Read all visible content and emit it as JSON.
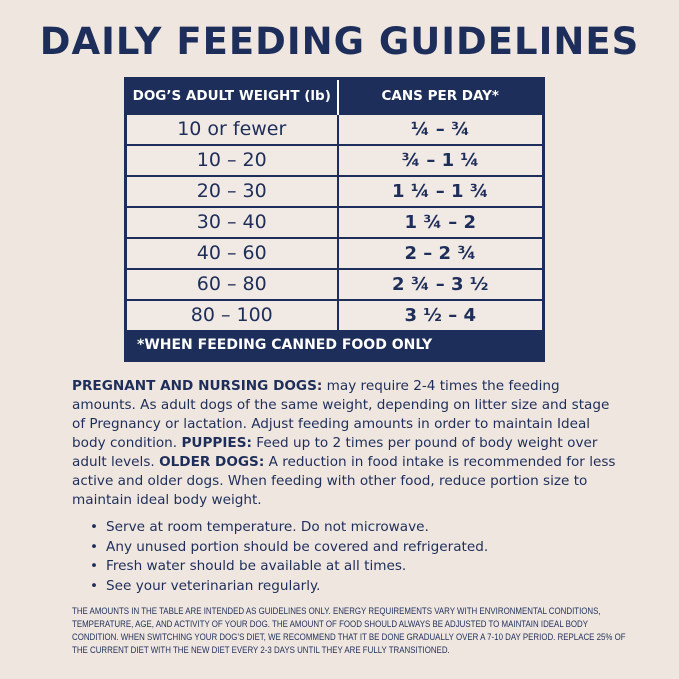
{
  "title": "DAILY FEEDING GUIDELINES",
  "table": {
    "headers": [
      "DOG’S ADULT WEIGHT (lb)",
      "CANS PER DAY*"
    ],
    "rows": [
      [
        "10 or fewer",
        "¼ – ¾"
      ],
      [
        "10 – 20",
        "¾ – 1 ¼"
      ],
      [
        "20 – 30",
        "1 ¼ – 1 ¾"
      ],
      [
        "30 – 40",
        "1 ¾ – 2"
      ],
      [
        "40 – 60",
        "2 – 2 ¾"
      ],
      [
        "60 – 80",
        "2 ¾ – 3 ½"
      ],
      [
        "80 – 100",
        "3 ½ – 4"
      ]
    ],
    "footnote": "*WHEN FEEDING CANNED FOOD ONLY"
  },
  "paragraph": {
    "pregnant_label": "PREGNANT AND NURSING DOGS:",
    "pregnant_text": " may require 2-4 times the feeding amounts. As adult dogs of the same weight, depending on litter size and stage of Pregnancy or lactation. Adjust feeding amounts in order to maintain Ideal body condition. ",
    "puppies_label": "PUPPIES:",
    "puppies_text": " Feed up to 2 times per pound of body weight over adult levels. ",
    "older_label": "OLDER DOGS:",
    "older_text": " A reduction in food intake is recommended for less active and older dogs. When feeding with other food, reduce portion size to maintain ideal body weight."
  },
  "bullets": [
    "Serve at room temperature. Do not microwave.",
    "Any unused portion should be covered and refrigerated.",
    "Fresh water should be available at all times.",
    "See your veterinarian regularly."
  ],
  "fine_print": "THE AMOUNTS IN THE TABLE ARE INTENDED AS GUIDELINES ONLY. ENERGY REQUIREMENTS VARY WITH ENVIRONMENTAL CONDITIONS, TEMPERATURE, AGE, AND ACTIVITY OF YOUR DOG. THE AMOUNT OF FOOD SHOULD ALWAYS BE ADJUSTED TO MAINTAIN IDEAL BODY CONDITION. WHEN SWITCHING YOUR DOG’S DIET, WE RECOMMEND THAT IT BE DONE GRADUALLY OVER A 7-10 DAY PERIOD. REPLACE 25% OF THE CURRENT DIET WITH THE NEW DIET EVERY 2-3 DAYS UNTIL THEY ARE FULLY TRANSITIONED.",
  "colors": {
    "navy": "#1e2e5a",
    "background": "#efe6e0"
  }
}
